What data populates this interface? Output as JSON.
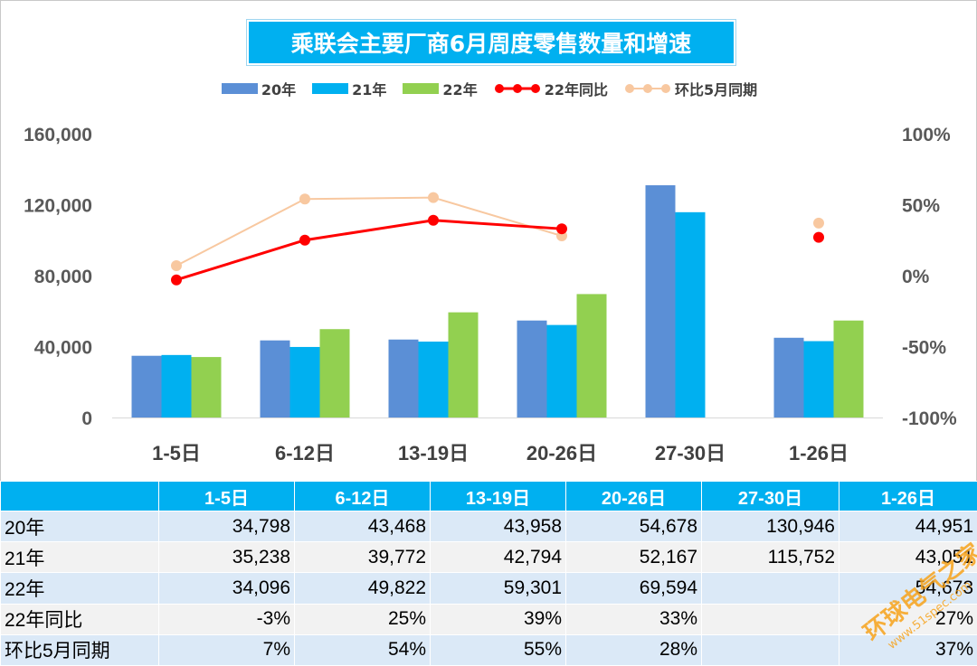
{
  "chart_data": {
    "type": "bar",
    "title": "乘联会主要厂商6月周度零售数量和增速",
    "categories": [
      "1-5日",
      "6-12日",
      "13-19日",
      "20-26日",
      "27-30日",
      "1-26日"
    ],
    "series": [
      {
        "name": "20年",
        "kind": "bar",
        "axis": "left",
        "color": "#5b8fd6",
        "values": [
          34798,
          43468,
          43958,
          54678,
          130946,
          44951
        ]
      },
      {
        "name": "21年",
        "kind": "bar",
        "axis": "left",
        "color": "#00b0f0",
        "values": [
          35238,
          39772,
          42794,
          52167,
          115752,
          43051
        ]
      },
      {
        "name": "22年",
        "kind": "bar",
        "axis": "left",
        "color": "#92d050",
        "values": [
          34096,
          49822,
          59301,
          69594,
          null,
          54673
        ]
      },
      {
        "name": "22年同比",
        "kind": "line",
        "axis": "right",
        "color": "#ff0000",
        "values": [
          -3,
          25,
          39,
          33,
          null,
          27
        ]
      },
      {
        "name": "环比5月同期",
        "kind": "line",
        "axis": "right",
        "color": "#f8c8a0",
        "values": [
          7,
          54,
          55,
          28,
          null,
          37
        ]
      }
    ],
    "left_axis": {
      "min": 0,
      "max": 160000,
      "ticks": [
        "0",
        "40,000",
        "80,000",
        "120,000",
        "160,000"
      ]
    },
    "right_axis": {
      "min": -100,
      "max": 100,
      "ticks": [
        "-100%",
        "-50%",
        "0%",
        "50%",
        "100%"
      ]
    },
    "grid": false,
    "legend_position": "top"
  },
  "table": {
    "header": [
      "",
      "1-5日",
      "6-12日",
      "13-19日",
      "20-26日",
      "27-30日",
      "1-26日"
    ],
    "rows": [
      {
        "label": "20年",
        "cells": [
          "34,798",
          "43,468",
          "43,958",
          "54,678",
          "130,946",
          "44,951"
        ]
      },
      {
        "label": "21年",
        "cells": [
          "35,238",
          "39,772",
          "42,794",
          "52,167",
          "115,752",
          "43,051"
        ]
      },
      {
        "label": "22年",
        "cells": [
          "34,096",
          "49,822",
          "59,301",
          "69,594",
          "",
          "54,673"
        ]
      },
      {
        "label": "22年同比",
        "cells": [
          "-3%",
          "25%",
          "39%",
          "33%",
          "",
          "27%"
        ]
      },
      {
        "label": "环比5月同期",
        "cells": [
          "7%",
          "54%",
          "55%",
          "28%",
          "",
          "37%"
        ]
      }
    ]
  },
  "watermark": {
    "line1": "环球电气之家",
    "line2": "www.51spec.com"
  }
}
